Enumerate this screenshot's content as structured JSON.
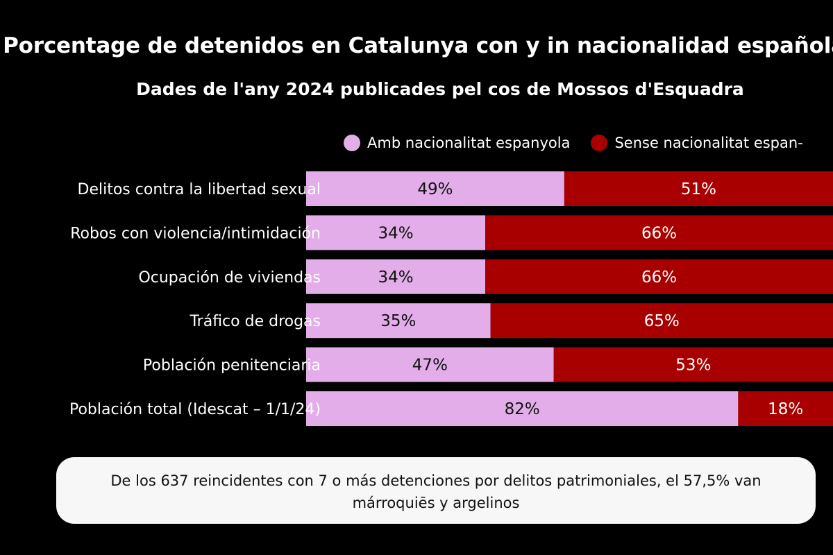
{
  "colors": {
    "background": "#000000",
    "spanish": "#e2ade9",
    "non_spanish": "#a80000",
    "callout_bg": "#f7f7f7"
  },
  "chart_data": {
    "type": "bar",
    "stacked": true,
    "orientation": "horizontal",
    "title": "Porcentage de detenidos en Catalunya con y in nacionalidad española",
    "subtitle": "Dades de l'any 2024 publicades pel cos de Mossos d'Esquadra",
    "legend": [
      "Amb nacionalitat espanyola",
      "Sense nacionalitat espan-"
    ],
    "legend_placement": "top-right",
    "xlim": [
      0,
      100
    ],
    "categories": [
      "Delitos contra la libertad sexual",
      "Robos con violencia/intimidación",
      "Ocupación de viviendas",
      "Tráfico de drogas",
      "Población penitenciaria",
      "Población total (Idescat – 1/1/24)"
    ],
    "series": [
      {
        "name": "Amb nacionalitat espanyola",
        "values": [
          49,
          34,
          34,
          35,
          47,
          82
        ],
        "labels": [
          "49%",
          "34%",
          "34%",
          "35%",
          "47%",
          "82%"
        ]
      },
      {
        "name": "Sense nacionalitat espanyola",
        "values": [
          51,
          66,
          66,
          65,
          53,
          18
        ],
        "labels": [
          "51%",
          "66%",
          "66%",
          "65%",
          "53%",
          "18%"
        ]
      }
    ]
  },
  "callout": {
    "text": "De los 637 reincidentes con 7 o más detenciones por delitos patrimoniales, el 57,5% van márroquiēs y argelinos"
  }
}
